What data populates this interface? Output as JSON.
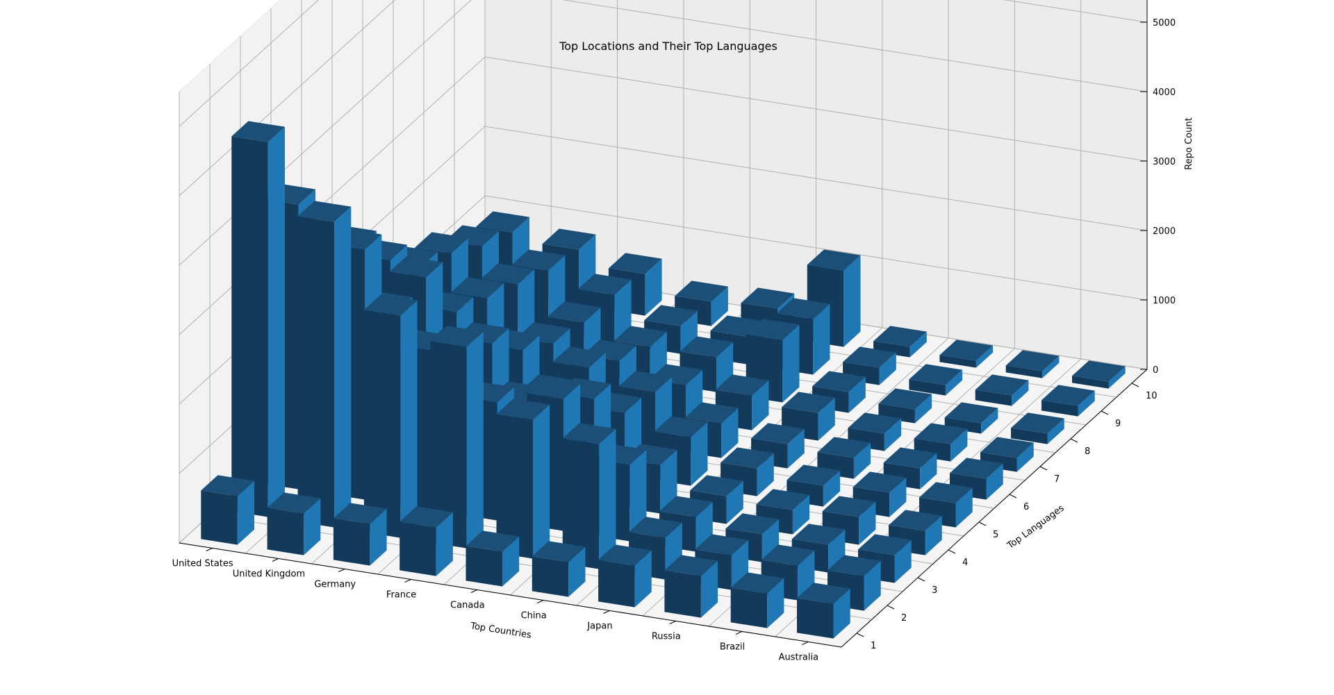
{
  "chart_data": {
    "type": "bar3d",
    "title": "Top Locations and Their Top Languages",
    "xlabel": "Top Countries",
    "ylabel": "Top Languages",
    "zlabel": "Repo Count",
    "x_categories": [
      "United States",
      "United Kingdom",
      "Germany",
      "France",
      "Canada",
      "China",
      "Japan",
      "Russia",
      "Brazil",
      "Australia"
    ],
    "y_categories": [
      "1",
      "2",
      "3",
      "4",
      "5",
      "6",
      "7",
      "8",
      "9",
      "10"
    ],
    "zlim": [
      0,
      6500
    ],
    "zticks": [
      0,
      1000,
      2000,
      3000,
      4000,
      5000,
      6000
    ],
    "grid": true,
    "bar_color": "#1f77b4",
    "values": [
      [
        700,
        5400,
        4100,
        2900,
        2700,
        2100,
        1600,
        1400,
        1100,
        900
      ],
      [
        600,
        4400,
        3600,
        2300,
        2400,
        1500,
        1300,
        1100,
        900,
        800
      ],
      [
        600,
        3200,
        2300,
        1900,
        1600,
        1100,
        800,
        700,
        700,
        600
      ],
      [
        700,
        2900,
        1700,
        1300,
        1000,
        1000,
        700,
        500,
        400,
        350
      ],
      [
        500,
        2000,
        1900,
        1500,
        900,
        800,
        500,
        500,
        400,
        400
      ],
      [
        500,
        1800,
        1100,
        700,
        700,
        500,
        500,
        900,
        800,
        1100
      ],
      [
        600,
        600,
        500,
        400,
        400,
        350,
        400,
        300,
        250,
        150
      ],
      [
        600,
        500,
        400,
        350,
        300,
        300,
        250,
        200,
        150,
        100
      ],
      [
        500,
        500,
        400,
        400,
        350,
        300,
        250,
        150,
        150,
        100
      ],
      [
        500,
        500,
        400,
        350,
        350,
        300,
        200,
        150,
        150,
        100
      ]
    ]
  }
}
